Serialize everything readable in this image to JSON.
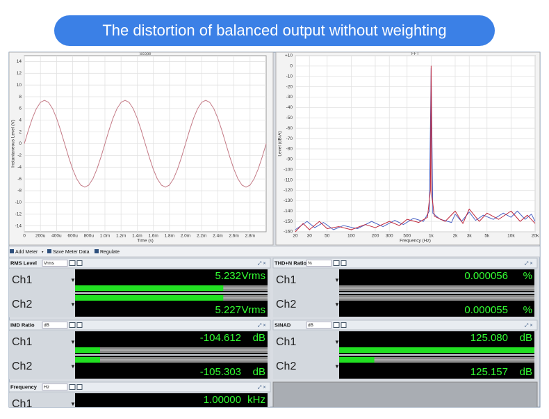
{
  "banner": {
    "title": "The distortion of balanced output without weighting"
  },
  "chart_data": [
    {
      "type": "line",
      "title": "Scope",
      "xlabel": "Time (s)",
      "ylabel": "Instantaneous Level (V)",
      "color": "#c47a86",
      "grid": true,
      "x": [
        0,
        5e-05,
        0.0001,
        0.00015,
        0.0002,
        0.00025,
        0.0003,
        0.00035,
        0.0004,
        0.00045,
        0.0005,
        0.00055,
        0.0006,
        0.00065,
        0.0007,
        0.00075,
        0.0008,
        0.00085,
        0.0009,
        0.00095,
        0.001,
        0.00105,
        0.0011,
        0.00115,
        0.0012,
        0.00125,
        0.0013,
        0.00135,
        0.0014,
        0.00145,
        0.0015,
        0.00155,
        0.0016,
        0.00165,
        0.0017,
        0.00175,
        0.0018,
        0.00185,
        0.0019,
        0.00195,
        0.002,
        0.00205,
        0.0021,
        0.00215,
        0.0022,
        0.00225,
        0.0023,
        0.00235,
        0.0024,
        0.00245,
        0.0025,
        0.00255,
        0.0026,
        0.00265,
        0.0027,
        0.00275,
        0.0028,
        0.00285,
        0.0029,
        0.00295,
        0.003
      ],
      "values": [
        0,
        2.29,
        4.35,
        5.99,
        7.04,
        7.4,
        7.04,
        5.99,
        4.35,
        2.29,
        0,
        -2.29,
        -4.35,
        -5.99,
        -7.04,
        -7.4,
        -7.04,
        -5.99,
        -4.35,
        -2.29,
        0,
        2.29,
        4.35,
        5.99,
        7.04,
        7.4,
        7.04,
        5.99,
        4.35,
        2.29,
        0,
        -2.29,
        -4.35,
        -5.99,
        -7.04,
        -7.4,
        -7.04,
        -5.99,
        -4.35,
        -2.29,
        0,
        2.29,
        4.35,
        5.99,
        7.04,
        7.4,
        7.04,
        5.99,
        4.35,
        2.29,
        0,
        -2.29,
        -4.35,
        -5.99,
        -7.04,
        -7.4,
        -7.04,
        -5.99,
        -4.35,
        -2.29,
        0
      ],
      "xlim": [
        0,
        0.003
      ],
      "ylim": [
        -15,
        15
      ],
      "xticks": [
        0,
        {
          "value": 0.0002,
          "label": "200u"
        },
        {
          "value": 0.0004,
          "label": "400u"
        },
        {
          "value": 0.0006,
          "label": "600u"
        },
        {
          "value": 0.0008,
          "label": "800u"
        },
        {
          "value": 0.001,
          "label": "1.0m"
        },
        {
          "value": 0.0012,
          "label": "1.2m"
        },
        {
          "value": 0.0014,
          "label": "1.4m"
        },
        {
          "value": 0.0016,
          "label": "1.6m"
        },
        {
          "value": 0.0018,
          "label": "1.8m"
        },
        {
          "value": 0.002,
          "label": "2.0m"
        },
        {
          "value": 0.0022,
          "label": "2.2m"
        },
        {
          "value": 0.0024,
          "label": "2.4m"
        },
        {
          "value": 0.0026,
          "label": "2.6m"
        },
        {
          "value": 0.0028,
          "label": "2.8m"
        }
      ],
      "yticks": [
        14,
        12,
        10,
        8,
        6,
        4,
        2,
        0,
        -2,
        -4,
        -6,
        -8,
        -10,
        -12,
        -14
      ]
    },
    {
      "type": "line",
      "title": "FFT",
      "xlabel": "Frequency (Hz)",
      "ylabel": "Level (dBrA)",
      "xscale": "log",
      "grid": true,
      "series": [
        {
          "color": "#4a62c4",
          "x": [
            20,
            28,
            35,
            45,
            60,
            80,
            120,
            180,
            250,
            350,
            450,
            600,
            800,
            950,
            1000,
            1050,
            1300,
            1800,
            2000,
            2400,
            3000,
            3600,
            4500,
            6000,
            8000,
            10000,
            12000,
            15000,
            18000,
            20000
          ],
          "values": [
            -158,
            -150,
            -156,
            -151,
            -158,
            -154,
            -157,
            -150,
            -155,
            -149,
            -153,
            -147,
            -150,
            -140,
            -2,
            -142,
            -148,
            -151,
            -143,
            -150,
            -141,
            -149,
            -144,
            -148,
            -142,
            -146,
            -140,
            -148,
            -143,
            -150
          ]
        },
        {
          "color": "#c0283c",
          "x": [
            20,
            25,
            30,
            40,
            50,
            70,
            100,
            150,
            200,
            300,
            400,
            500,
            700,
            900,
            980,
            1000,
            1020,
            1100,
            1500,
            2000,
            2500,
            3000,
            4000,
            5000,
            7000,
            10000,
            13000,
            16000,
            20000
          ],
          "values": [
            -160,
            -152,
            -158,
            -150,
            -157,
            -155,
            -158,
            -153,
            -156,
            -150,
            -154,
            -148,
            -151,
            -146,
            -120,
            0,
            -125,
            -145,
            -150,
            -140,
            -152,
            -138,
            -150,
            -142,
            -148,
            -140,
            -150,
            -144,
            -152
          ]
        }
      ],
      "xlim": [
        20,
        20000
      ],
      "ylim": [
        -160,
        10
      ],
      "xticks": [
        20,
        30,
        50,
        100,
        200,
        300,
        500,
        {
          "value": 1000,
          "label": "1k"
        },
        {
          "value": 2000,
          "label": "2k"
        },
        {
          "value": 3000,
          "label": "3k"
        },
        {
          "value": 5000,
          "label": "5k"
        },
        {
          "value": 10000,
          "label": "10k"
        },
        {
          "value": 20000,
          "label": "20k"
        }
      ],
      "yticks": [
        {
          "value": 10,
          "label": "+10"
        },
        0,
        -10,
        -20,
        -30,
        -40,
        -50,
        -60,
        -70,
        -80,
        -90,
        -100,
        -110,
        -120,
        -130,
        -140,
        -150,
        -160
      ]
    }
  ],
  "toolbar": [
    "Add Meter",
    "Save Meter Data",
    "Regulate"
  ],
  "meters": [
    {
      "title": "RMS Level",
      "unit": "Vrms",
      "display_unit": "Vrms",
      "channels": [
        {
          "label": "Ch1",
          "value": "5.232"
        },
        {
          "label": "Ch2",
          "value": "5.227"
        }
      ]
    },
    {
      "title": "THD+N Ratio",
      "unit": "%",
      "display_unit": "%",
      "channels": [
        {
          "label": "Ch1",
          "value": "0.000056"
        },
        {
          "label": "Ch2",
          "value": "0.000055"
        }
      ]
    },
    {
      "title": "IMD Ratio",
      "unit": "dB",
      "display_unit": "dB",
      "channels": [
        {
          "label": "Ch1",
          "value": "-104.612"
        },
        {
          "label": "Ch2",
          "value": "-105.303"
        }
      ]
    },
    {
      "title": "SINAD",
      "unit": "dB",
      "display_unit": "dB",
      "channels": [
        {
          "label": "Ch1",
          "value": "125.080"
        },
        {
          "label": "Ch2",
          "value": "125.157"
        }
      ]
    },
    {
      "title": "Frequency",
      "unit": "Hz",
      "display_unit": "kHz",
      "channels": [
        {
          "label": "Ch1",
          "value": "1.00000"
        }
      ]
    }
  ]
}
